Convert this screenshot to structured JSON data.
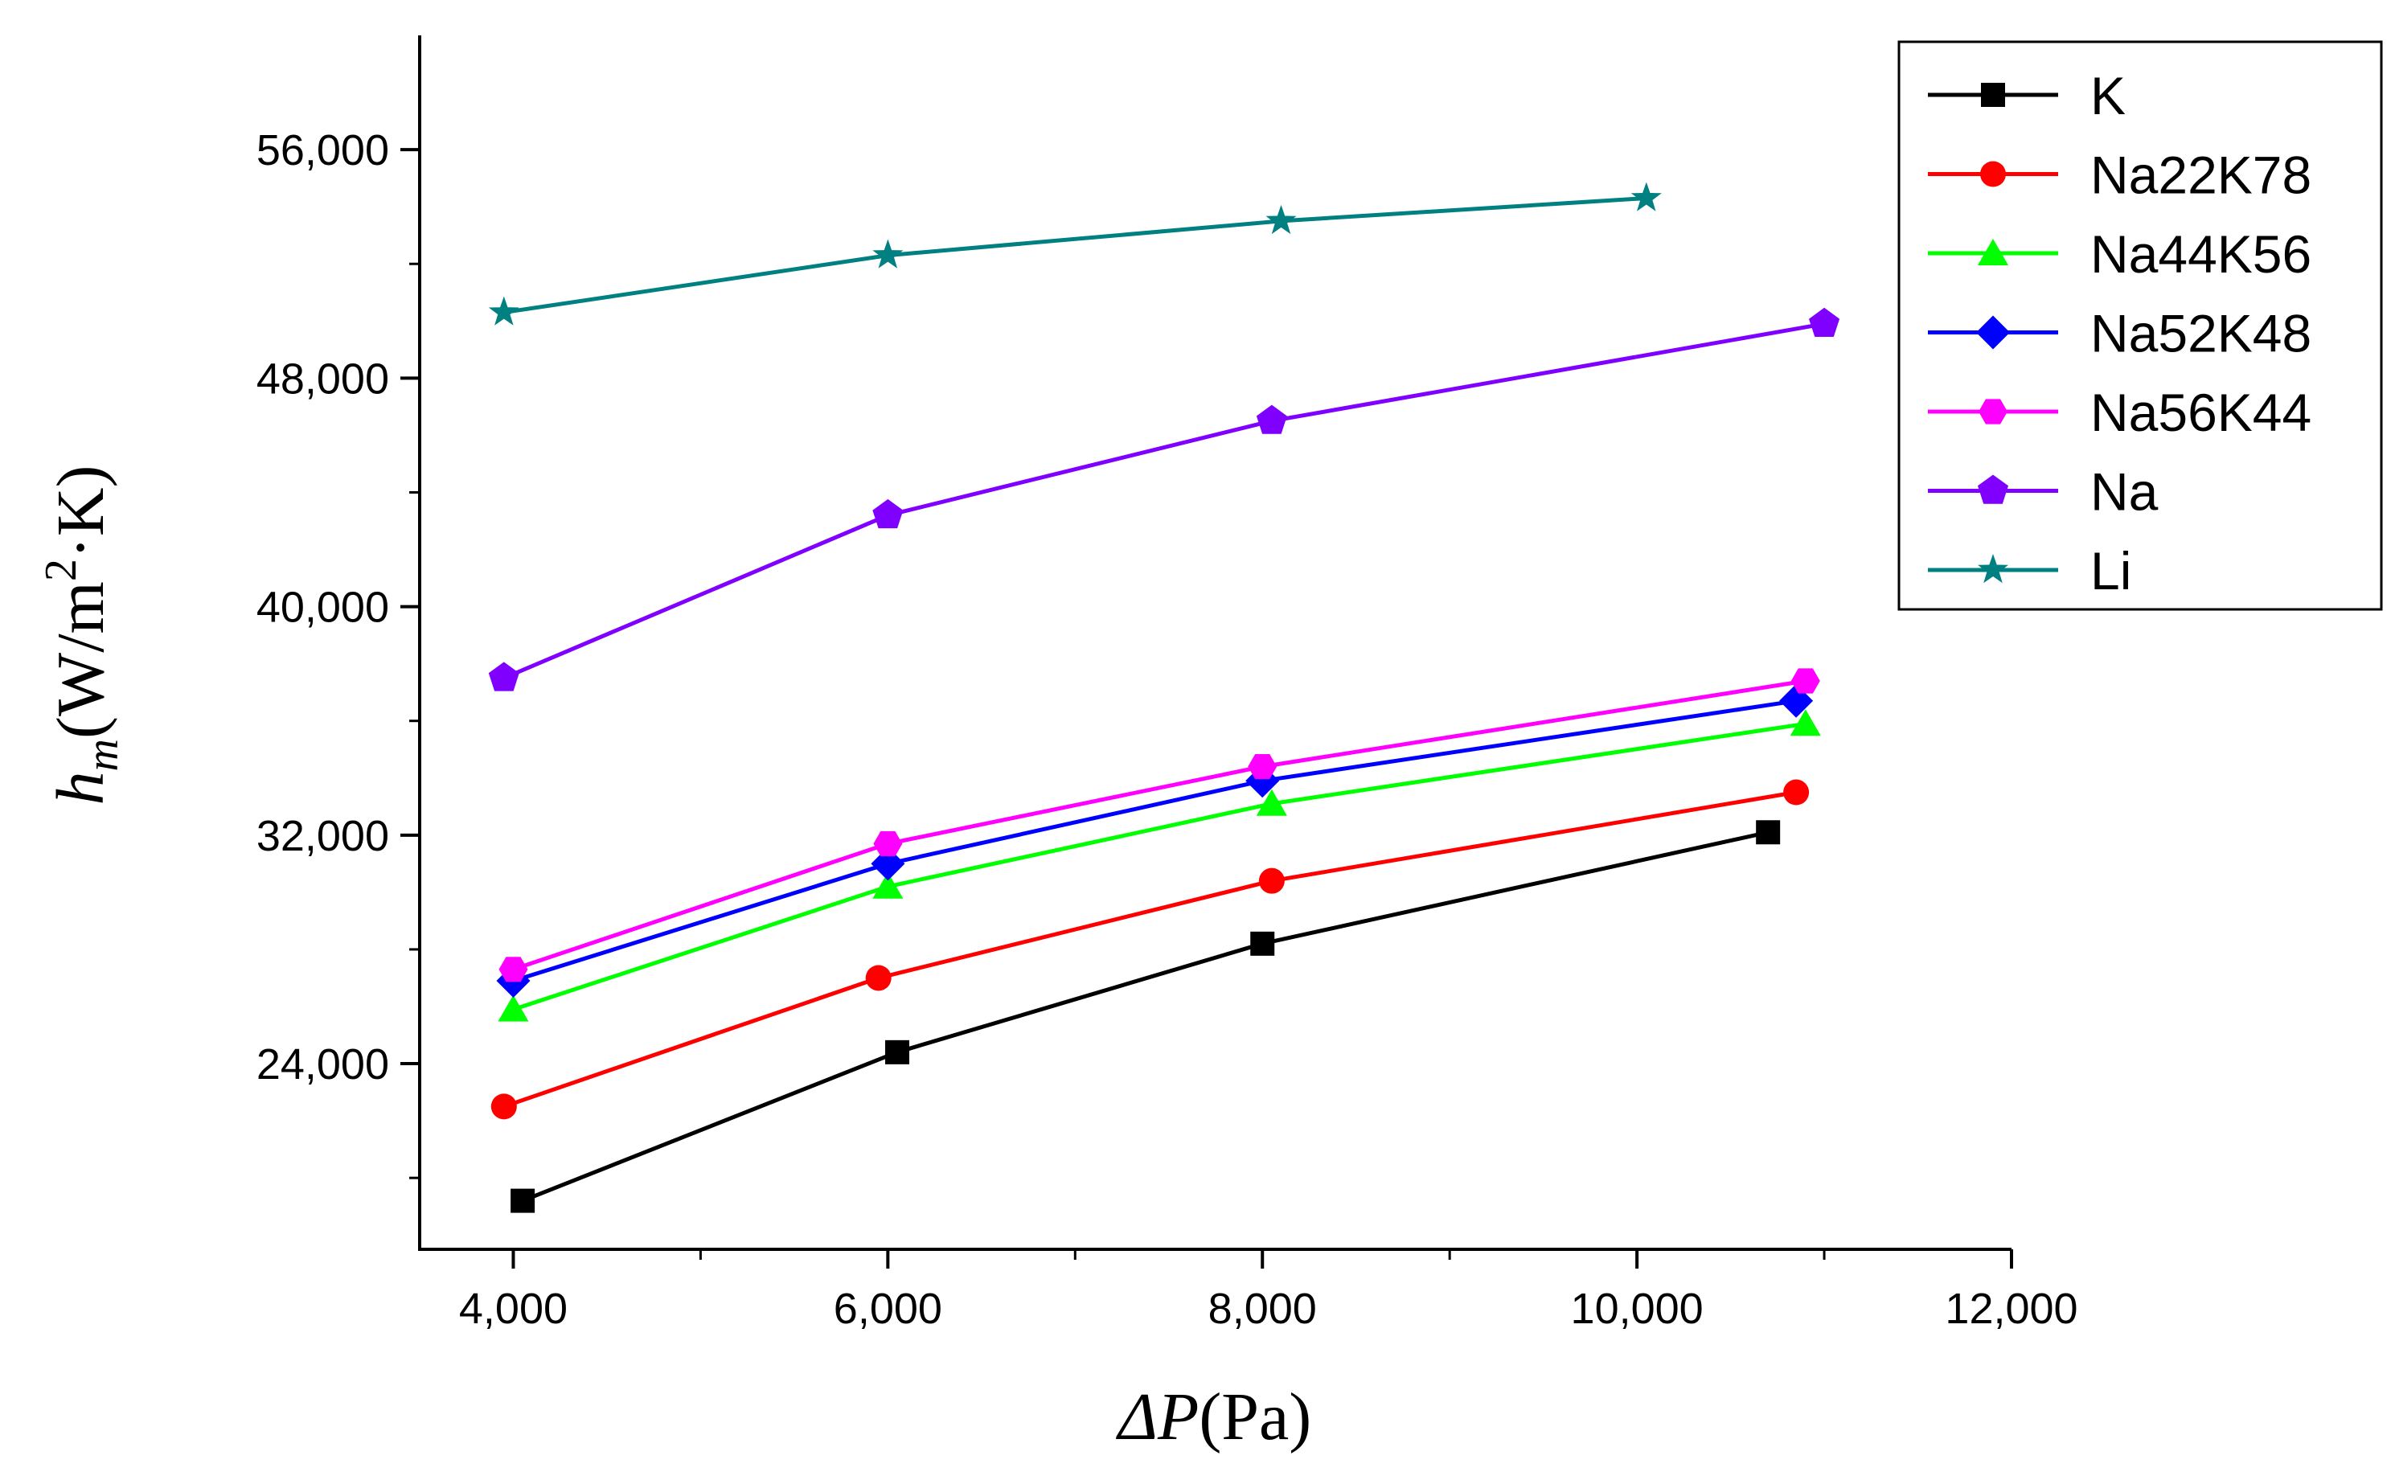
{
  "chart_data": {
    "type": "line",
    "xlabel": {
      "symbol": "ΔP",
      "unit": "(Pa)"
    },
    "ylabel": {
      "symbol": "h",
      "subscript": "m",
      "unit_open": "(W/m",
      "superscript": "2",
      "unit_close": "·K)"
    },
    "xlim": [
      3500,
      12000
    ],
    "ylim": [
      17500,
      60000
    ],
    "x_ticks": [
      4000,
      6000,
      8000,
      10000,
      12000
    ],
    "x_tick_labels": [
      "4,000",
      "6,000",
      "8,000",
      "10,000",
      "12,000"
    ],
    "y_ticks": [
      24000,
      32000,
      40000,
      48000,
      56000
    ],
    "y_tick_labels": [
      "24,000",
      "32,000",
      "40,000",
      "48,000",
      "56,000"
    ],
    "grid": false,
    "legend_position": "top-right",
    "series": [
      {
        "name": "K",
        "color": "#000000",
        "marker": "square",
        "points": [
          [
            4050,
            19200
          ],
          [
            6050,
            24400
          ],
          [
            8000,
            28200
          ],
          [
            10700,
            32100
          ]
        ]
      },
      {
        "name": "Na22K78",
        "color": "#ff0000",
        "marker": "circle",
        "points": [
          [
            3950,
            22500
          ],
          [
            5950,
            27000
          ],
          [
            8050,
            30400
          ],
          [
            10850,
            33500
          ]
        ]
      },
      {
        "name": "Na44K56",
        "color": "#00ff00",
        "marker": "triangle",
        "points": [
          [
            4000,
            25900
          ],
          [
            6000,
            30200
          ],
          [
            8050,
            33100
          ],
          [
            10900,
            35900
          ]
        ]
      },
      {
        "name": "Na52K48",
        "color": "#0000ff",
        "marker": "diamond",
        "points": [
          [
            4000,
            26900
          ],
          [
            6000,
            31000
          ],
          [
            8000,
            33900
          ],
          [
            10850,
            36700
          ]
        ]
      },
      {
        "name": "Na56K44",
        "color": "#ff00ff",
        "marker": "hexagon",
        "points": [
          [
            4000,
            27300
          ],
          [
            6000,
            31700
          ],
          [
            8000,
            34400
          ],
          [
            10900,
            37400
          ]
        ]
      },
      {
        "name": "Na",
        "color": "#8000ff",
        "marker": "pentagon",
        "points": [
          [
            3950,
            37500
          ],
          [
            6000,
            43200
          ],
          [
            8050,
            46500
          ],
          [
            11000,
            49900
          ]
        ]
      },
      {
        "name": "Li",
        "color": "#008080",
        "marker": "star",
        "points": [
          [
            3950,
            50300
          ],
          [
            6000,
            52300
          ],
          [
            8100,
            53500
          ],
          [
            10050,
            54300
          ]
        ]
      }
    ]
  }
}
